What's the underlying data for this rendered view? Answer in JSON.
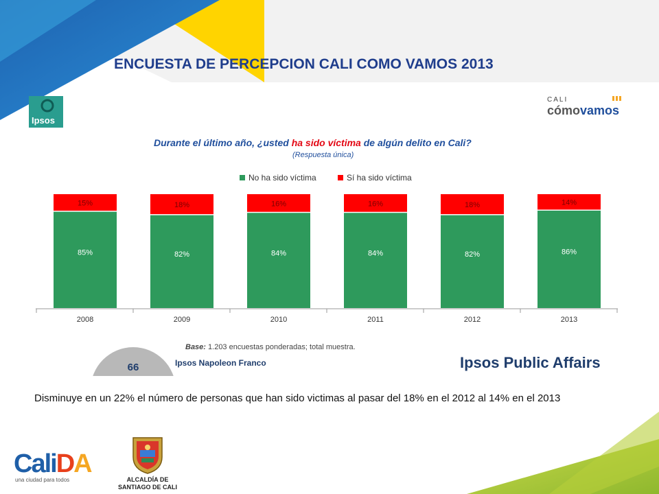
{
  "slide": {
    "title": "ENCUESTA DE PERCEPCION CALI COMO VAMOS 2013",
    "caption": "Disminuye en un 22% el número de personas que han sido victimas al pasar del 18%  en el 2012 al 14% en el 2013",
    "page_number": "66"
  },
  "logos": {
    "ipsos": "Ipsos",
    "cali_small": "CALI",
    "como": "cómo",
    "vamos": "vamos",
    "calida_main": "CaliDA",
    "calida_tagline": "una ciudad para todos",
    "alcaldia_line1": "ALCALDÍA DE",
    "alcaldia_line2": "SANTIAGO DE CALI",
    "ipsos_napoleon": "Ipsos Napoleon Franco",
    "ipsos_public_affairs": "Ipsos Public Affairs"
  },
  "chart": {
    "question_part1": "Durante el último año, ¿usted ",
    "question_highlight": "ha sido víctima",
    "question_part2": " de algún delito en Cali?",
    "subtitle": "(Respuesta única)",
    "base_label": "Base:",
    "base_text": " 1.203 encuestas ponderadas; total muestra."
  },
  "colors": {
    "green": "#2e9a5c",
    "red": "#ff0000",
    "title_blue": "#1f3d8c",
    "question_blue": "#1f4e9c",
    "question_red": "#e30613"
  },
  "chart_data": {
    "type": "bar",
    "stacked": true,
    "categories": [
      "2008",
      "2009",
      "2010",
      "2011",
      "2012",
      "2013"
    ],
    "series": [
      {
        "name": "No ha sido víctima",
        "color": "#2e9a5c",
        "values": [
          85,
          82,
          84,
          84,
          82,
          86
        ],
        "labels": [
          "85%",
          "82%",
          "84%",
          "84%",
          "82%",
          "86%"
        ]
      },
      {
        "name": "Sí ha sido víctima",
        "color": "#ff0000",
        "values": [
          15,
          18,
          16,
          16,
          18,
          14
        ],
        "labels": [
          "15%",
          "18%",
          "16%",
          "16%",
          "18%",
          "14%"
        ]
      }
    ],
    "ylim": [
      0,
      100
    ],
    "legend_position": "top-center"
  }
}
